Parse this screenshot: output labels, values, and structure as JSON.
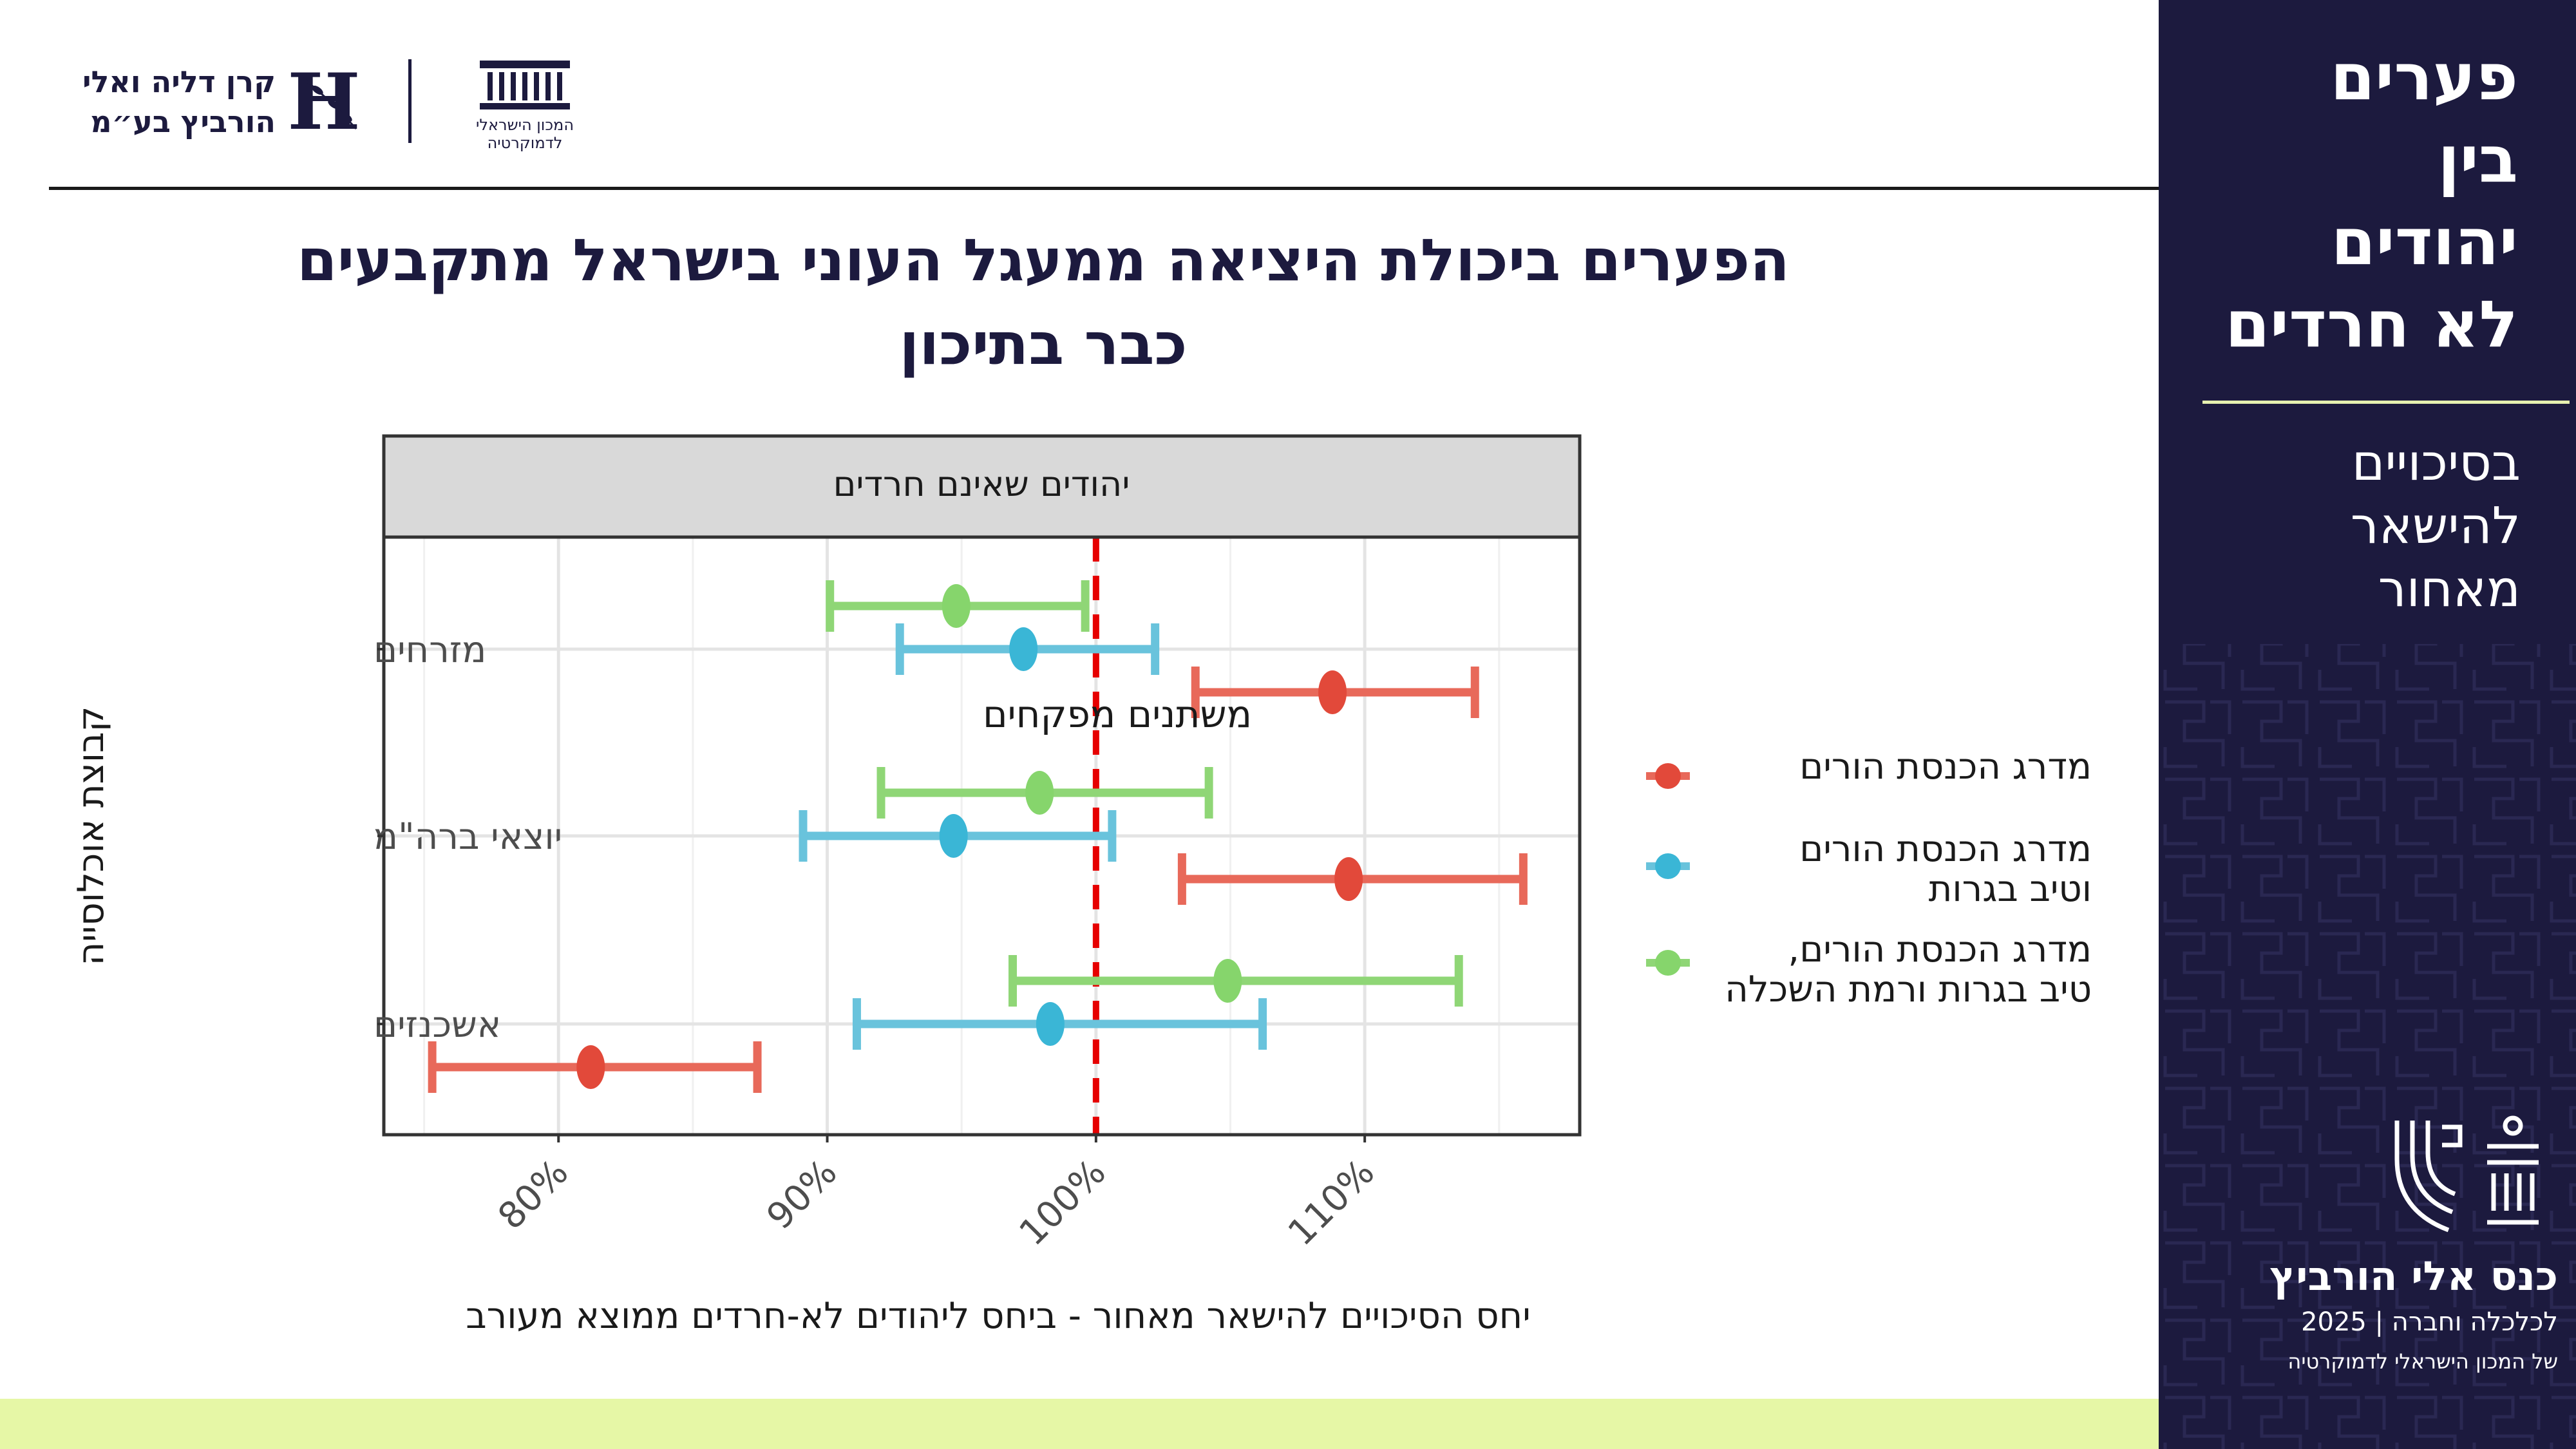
{
  "header": {
    "logo_horovitz": {
      "line1": "קרן דליה ואלי",
      "line2": "הורביץ בע״מ"
    },
    "logo_idi": {
      "line1": "המכון הישראלי",
      "line2": "לדמוקרטיה"
    }
  },
  "sidebar": {
    "title_lines": [
      "פערים",
      "בין",
      "יהודים",
      "לא חרדים"
    ],
    "subtitle_lines": [
      "בסיכויים",
      "להישאר",
      "מאחור"
    ],
    "conference": {
      "title": "כנס אלי הורביץ",
      "line2": "לכלכלה וחברה | 2025",
      "line3": "של המכון הישראלי לדמוקרטיה"
    }
  },
  "main_title": {
    "line1": "הפערים ביכולת היציאה ממעגל העוני בישראל מתקבעים",
    "line2": "כבר בתיכון"
  },
  "colors": {
    "red": "#e8695a",
    "red_point": "#e2493a",
    "blue": "#69c3dc",
    "blue_point": "#3ab6d6",
    "green": "#8fd676",
    "green_point": "#86d56c",
    "reference": "#e60000",
    "sidebar_bg": "#1c1a3e",
    "accent_band": "#e6f7a6"
  },
  "chart_data": {
    "type": "errorbar",
    "facet_label": "יהודים שאינם חרדים",
    "xlabel": "יחס הסיכויים להישאר מאחור - ביחס ליהודים לא-חרדים ממוצא מעורב",
    "ylabel": "קבוצת אוכלוסייה",
    "xlim": [
      73.5,
      118
    ],
    "x_ticks": [
      80,
      90,
      100,
      110
    ],
    "x_tick_labels": [
      "80%",
      "90%",
      "100%",
      "110%"
    ],
    "reference_line": 100,
    "categories": [
      "מזרחים",
      "יוצאי ברה\"מ",
      "אשכנזים"
    ],
    "legend_title": "משתנים מפקחים",
    "series": [
      {
        "name": "מדרג הכנסת הורים",
        "name_lines": [
          "מדרג הכנסת הורים"
        ],
        "color": "#e8695a",
        "point_color": "#e2493a",
        "values": [
          {
            "category": "מזרחים",
            "estimate": 108.8,
            "low": 103.7,
            "high": 114.1
          },
          {
            "category": "יוצאי ברה\"מ",
            "estimate": 109.4,
            "low": 103.2,
            "high": 115.9
          },
          {
            "category": "אשכנזים",
            "estimate": 81.2,
            "low": 75.3,
            "high": 87.4
          }
        ]
      },
      {
        "name": "מדרג הכנסת הורים וטיב בגרות",
        "name_lines": [
          "מדרג הכנסת הורים",
          "וטיב בגרות"
        ],
        "color": "#69c3dc",
        "point_color": "#3ab6d6",
        "values": [
          {
            "category": "מזרחים",
            "estimate": 97.3,
            "low": 92.7,
            "high": 102.2
          },
          {
            "category": "יוצאי ברה\"מ",
            "estimate": 94.7,
            "low": 89.1,
            "high": 100.6
          },
          {
            "category": "אשכנזים",
            "estimate": 98.3,
            "low": 91.1,
            "high": 106.2
          }
        ]
      },
      {
        "name": "מדרג הכנסת הורים, טיב בגרות ורמת השכלה",
        "name_lines": [
          "מדרג הכנסת הורים,",
          "טיב בגרות ורמת השכלה"
        ],
        "color": "#8fd676",
        "point_color": "#86d56c",
        "values": [
          {
            "category": "מזרחים",
            "estimate": 94.8,
            "low": 90.1,
            "high": 99.6
          },
          {
            "category": "יוצאי ברה\"מ",
            "estimate": 97.9,
            "low": 92.0,
            "high": 104.2
          },
          {
            "category": "אשכנזים",
            "estimate": 104.9,
            "low": 96.9,
            "high": 113.5
          }
        ]
      }
    ]
  }
}
